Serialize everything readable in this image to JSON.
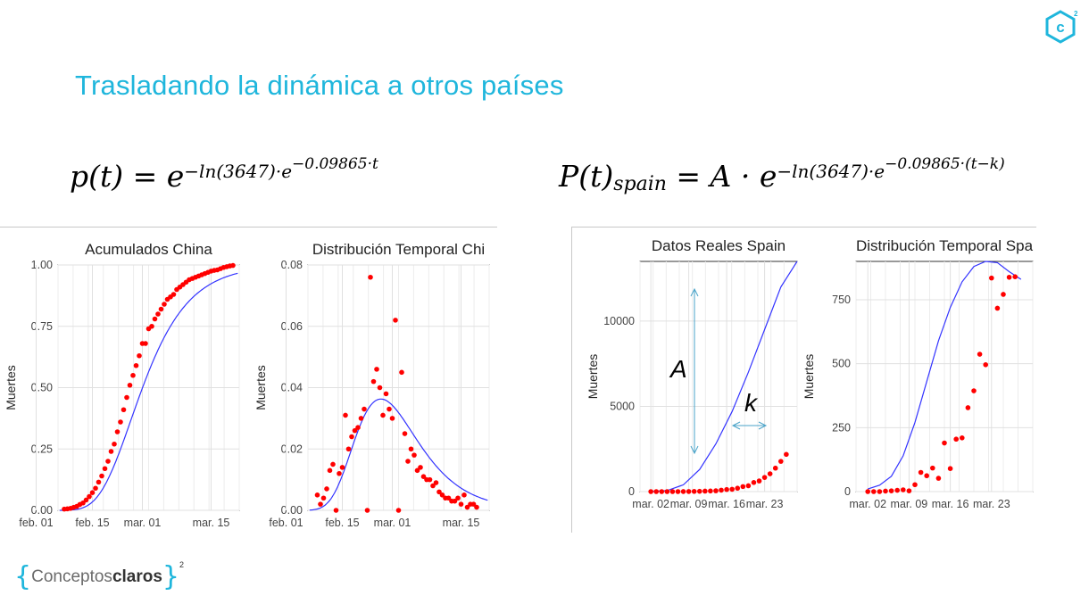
{
  "slide": {
    "title": "Trasladando la dinámica a otros países",
    "formula1": {
      "lhs": "p(t) = e",
      "exponent": "−ln(3647)·e",
      "inner_exp": "−0.09865·t"
    },
    "formula2": {
      "lhs": "P(t)",
      "subscript": "spain",
      "mid": " = A · e",
      "exponent": "−ln(3647)·e",
      "inner_exp": "−0.09865·(t−k)"
    },
    "annotations": {
      "A": "A",
      "k": "k"
    },
    "logo_corner": "c",
    "logo_corner_sup": "2",
    "brand": {
      "left_bracket": "{",
      "part1": "Conceptos",
      "part2": "claros",
      "right_bracket": "}",
      "sup": "2"
    }
  },
  "colors": {
    "accent": "#1fb6dc",
    "points": "#ff0000",
    "model_line": "#3333ff",
    "arrow": "#4aa3c8"
  },
  "chart_data": [
    {
      "type": "scatter",
      "title": "Acumulados China",
      "ylabel": "Muertes",
      "xlabel": "",
      "x_ticks": [
        "feb. 01",
        "feb. 15",
        "mar. 01",
        "mar. 15"
      ],
      "y_ticks": [
        "0.00",
        "0.25",
        "0.50",
        "0.75",
        "1.00"
      ],
      "ylim": [
        0,
        1.0
      ],
      "x_days": [
        -9,
        9,
        25,
        47
      ],
      "series": [
        {
          "name": "",
          "kind": "points",
          "x": [
            0,
            1,
            2,
            3,
            4,
            5,
            6,
            7,
            8,
            9,
            10,
            11,
            12,
            13,
            14,
            15,
            16,
            17,
            18,
            19,
            20,
            21,
            22,
            23,
            24,
            25,
            26,
            27,
            28,
            29,
            30,
            31,
            32,
            33,
            34,
            35,
            36,
            37,
            38,
            39,
            40,
            41,
            42,
            43,
            44,
            45,
            46,
            47,
            48,
            49,
            50,
            51,
            52,
            53,
            54
          ],
          "y": [
            0.005,
            0.006,
            0.008,
            0.012,
            0.016,
            0.024,
            0.03,
            0.042,
            0.056,
            0.072,
            0.09,
            0.115,
            0.14,
            0.17,
            0.2,
            0.24,
            0.27,
            0.32,
            0.36,
            0.41,
            0.46,
            0.51,
            0.55,
            0.59,
            0.63,
            0.68,
            0.68,
            0.74,
            0.75,
            0.78,
            0.8,
            0.82,
            0.84,
            0.86,
            0.87,
            0.88,
            0.9,
            0.91,
            0.92,
            0.93,
            0.94,
            0.945,
            0.95,
            0.955,
            0.96,
            0.965,
            0.97,
            0.975,
            0.978,
            0.98,
            0.985,
            0.99,
            0.993,
            0.996,
            0.998
          ]
        },
        {
          "name": "",
          "kind": "line",
          "model": "gompertz",
          "b": 3647,
          "c": 0.09865
        }
      ],
      "grid": true
    },
    {
      "type": "scatter",
      "title": "Distribución Temporal Chi",
      "ylabel": "Muertes",
      "xlabel": "",
      "x_ticks": [
        "feb. 01",
        "feb. 15",
        "mar. 01",
        "mar. 15"
      ],
      "y_ticks": [
        "0.00",
        "0.02",
        "0.04",
        "0.06",
        "0.08"
      ],
      "ylim": [
        0,
        0.08
      ],
      "x_days": [
        -9,
        9,
        25,
        47
      ],
      "series": [
        {
          "name": "",
          "kind": "points",
          "x": [
            1,
            2,
            3,
            4,
            5,
            6,
            7,
            8,
            9,
            10,
            11,
            12,
            13,
            14,
            15,
            16,
            17,
            18,
            19,
            20,
            21,
            22,
            23,
            24,
            25,
            26,
            27,
            28,
            29,
            30,
            31,
            32,
            33,
            34,
            35,
            36,
            37,
            38,
            39,
            40,
            41,
            42,
            43,
            44,
            45,
            46,
            47,
            48,
            49,
            50,
            51,
            52
          ],
          "y": [
            0.005,
            0.002,
            0.004,
            0.007,
            0.013,
            0.015,
            0.0,
            0.012,
            0.014,
            0.031,
            0.02,
            0.024,
            0.026,
            0.027,
            0.03,
            0.033,
            0.0,
            0.076,
            0.042,
            0.046,
            0.04,
            0.031,
            0.038,
            0.033,
            0.03,
            0.062,
            0.0,
            0.045,
            0.025,
            0.016,
            0.02,
            0.018,
            0.013,
            0.014,
            0.011,
            0.01,
            0.01,
            0.008,
            0.009,
            0.006,
            0.005,
            0.004,
            0.004,
            0.003,
            0.003,
            0.004,
            0.002,
            0.005,
            0.001,
            0.002,
            0.002,
            0.001
          ]
        },
        {
          "name": "",
          "kind": "line",
          "model": "gompertz_density",
          "b": 3647,
          "c": 0.09865
        }
      ],
      "grid": true
    },
    {
      "type": "scatter",
      "title": "Datos Reales Spain",
      "ylabel": "Muertes",
      "xlabel": "",
      "x_ticks": [
        "mar. 02",
        "mar. 09",
        "mar. 16",
        "mar. 23"
      ],
      "y_ticks": [
        "0",
        "5000",
        "10000"
      ],
      "ylim": [
        0,
        13500
      ],
      "series": [
        {
          "name": "",
          "kind": "points",
          "x": [
            1,
            2,
            3,
            4,
            5,
            6,
            7,
            8,
            9,
            10,
            11,
            12,
            13,
            14,
            15,
            16,
            17,
            18,
            19,
            20,
            21,
            22,
            23,
            24,
            25,
            26
          ],
          "y": [
            0,
            0,
            0,
            0,
            0,
            0,
            3,
            5,
            10,
            17,
            28,
            35,
            47,
            84,
            120,
            136,
            198,
            294,
            342,
            533,
            623,
            830,
            1043,
            1375,
            1772,
            2182
          ]
        },
        {
          "name": "",
          "kind": "line",
          "x": [
            1,
            4,
            7,
            10,
            13,
            16,
            19,
            22,
            25,
            28
          ],
          "y": [
            0,
            60,
            400,
            1300,
            2800,
            4700,
            7000,
            9500,
            12000,
            13500
          ]
        }
      ],
      "grid": true
    },
    {
      "type": "scatter",
      "title": "Distribución Temporal Spa",
      "ylabel": "Muertes",
      "xlabel": "",
      "x_ticks": [
        "mar. 02",
        "mar. 09",
        "mar. 16",
        "mar. 23"
      ],
      "y_ticks": [
        "0",
        "250",
        "500",
        "750"
      ],
      "ylim": [
        0,
        900
      ],
      "series": [
        {
          "name": "",
          "kind": "points",
          "x": [
            1,
            2,
            3,
            4,
            5,
            6,
            7,
            8,
            9,
            10,
            11,
            12,
            13,
            14,
            15,
            16,
            17,
            18,
            19,
            20,
            21,
            22,
            23,
            24,
            25,
            26
          ],
          "y": [
            0,
            0,
            0,
            2,
            3,
            5,
            7,
            3,
            27,
            75,
            62,
            92,
            52,
            190,
            90,
            205,
            210,
            328,
            394,
            537,
            496,
            835,
            717,
            771,
            838,
            840
          ]
        },
        {
          "name": "",
          "kind": "line",
          "x": [
            1,
            3,
            5,
            7,
            9,
            11,
            13,
            15,
            17,
            19,
            21,
            23,
            25,
            27
          ],
          "y": [
            10,
            25,
            60,
            140,
            270,
            430,
            590,
            720,
            820,
            880,
            900,
            895,
            860,
            830
          ]
        }
      ],
      "grid": true
    }
  ]
}
